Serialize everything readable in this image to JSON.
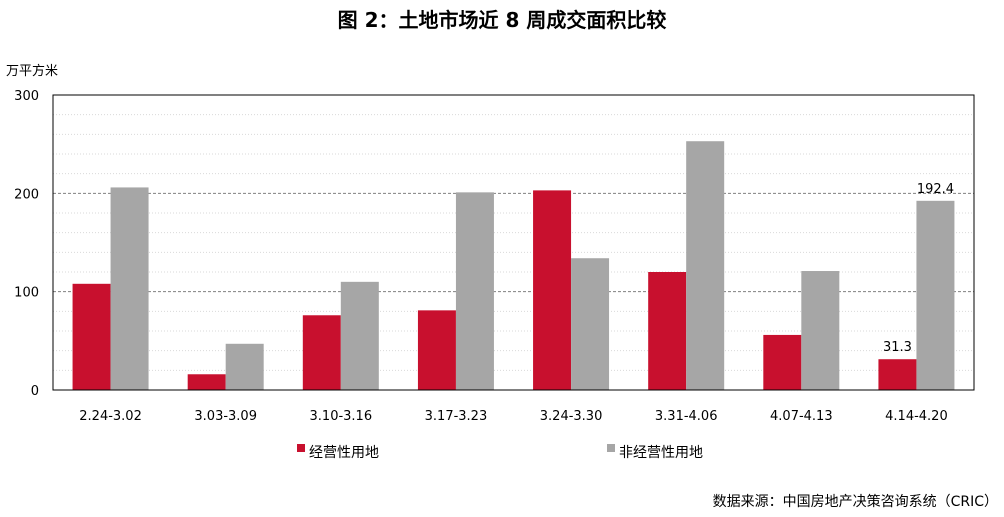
{
  "chart_data": {
    "type": "bar",
    "title": "图 2：土地市场近 8 周成交面积比较",
    "ylabel": "万平方米",
    "ylim": [
      0,
      300
    ],
    "yticks": [
      "0",
      "100",
      "200",
      "300"
    ],
    "categories": [
      "2.24-3.02",
      "3.03-3.09",
      "3.10-3.16",
      "3.17-3.23",
      "3.24-3.30",
      "3.31-4.06",
      "4.07-4.13",
      "4.14-4.20"
    ],
    "series": [
      {
        "name": "经营性用地",
        "color": "#c8102e",
        "values": [
          108,
          16,
          76,
          81,
          203,
          120,
          56,
          31.3
        ]
      },
      {
        "name": "非经营性用地",
        "color": "#a6a6a6",
        "values": [
          206,
          47,
          110,
          201,
          134,
          253,
          121,
          192.4
        ]
      }
    ],
    "data_labels": [
      {
        "series": 0,
        "index": 7,
        "text": "31.3"
      },
      {
        "series": 1,
        "index": 7,
        "text": "192.4"
      }
    ],
    "grid": true,
    "legend": "bottom",
    "source": "数据来源：中国房地产决策咨询系统（CRIC）"
  }
}
